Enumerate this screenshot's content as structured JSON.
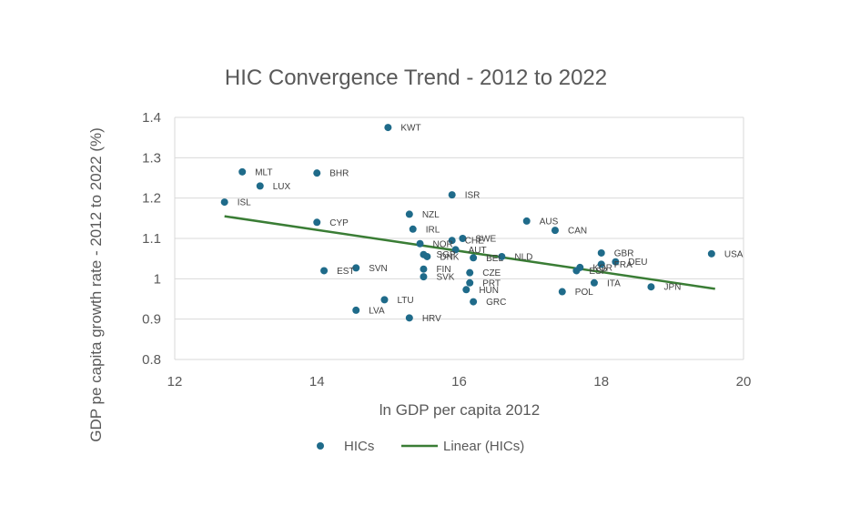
{
  "chart_data": {
    "type": "scatter",
    "title": "HIC Convergence Trend - 2012 to 2022",
    "xlabel": "ln GDP per capita 2012",
    "ylabel": "GDP pe capita growth rate - 2012 to 2022 (%)",
    "xlim": [
      12,
      20
    ],
    "ylim": [
      0.8,
      1.4
    ],
    "xticks": [
      "12",
      "14",
      "16",
      "18",
      "20"
    ],
    "yticks": [
      "0.8",
      "0.9",
      "1",
      "1.1",
      "1.2",
      "1.3",
      "1.4"
    ],
    "grid": "horizontal",
    "legend": [
      {
        "name": "HICs",
        "kind": "marker"
      },
      {
        "name": "Linear (HICs)",
        "kind": "line"
      }
    ],
    "marker_color": "#1f6b8a",
    "trend_color": "#3a7d35",
    "trendline": {
      "x": [
        12.7,
        19.6
      ],
      "y": [
        1.155,
        0.975
      ]
    },
    "points": [
      {
        "label": "KWT",
        "x": 15.0,
        "y": 1.375
      },
      {
        "label": "MLT",
        "x": 12.95,
        "y": 1.265
      },
      {
        "label": "BHR",
        "x": 14.0,
        "y": 1.262
      },
      {
        "label": "LUX",
        "x": 13.2,
        "y": 1.23
      },
      {
        "label": "ISR",
        "x": 15.9,
        "y": 1.208
      },
      {
        "label": "ISL",
        "x": 12.7,
        "y": 1.19
      },
      {
        "label": "NZL",
        "x": 15.3,
        "y": 1.16
      },
      {
        "label": "AUS",
        "x": 16.95,
        "y": 1.143
      },
      {
        "label": "CYP",
        "x": 14.0,
        "y": 1.14
      },
      {
        "label": "IRL",
        "x": 15.35,
        "y": 1.123
      },
      {
        "label": "CAN",
        "x": 17.35,
        "y": 1.12
      },
      {
        "label": "SWE",
        "x": 16.05,
        "y": 1.1
      },
      {
        "label": "CHE",
        "x": 15.9,
        "y": 1.095
      },
      {
        "label": "NOR",
        "x": 15.45,
        "y": 1.087
      },
      {
        "label": "AUT",
        "x": 15.95,
        "y": 1.072
      },
      {
        "label": "USA",
        "x": 19.55,
        "y": 1.062
      },
      {
        "label": "GBR",
        "x": 18.0,
        "y": 1.064
      },
      {
        "label": "SGP",
        "x": 15.5,
        "y": 1.06
      },
      {
        "label": "DNK",
        "x": 15.55,
        "y": 1.055
      },
      {
        "label": "NLD",
        "x": 16.6,
        "y": 1.055
      },
      {
        "label": "BEL",
        "x": 16.2,
        "y": 1.052
      },
      {
        "label": "DEU",
        "x": 18.2,
        "y": 1.042
      },
      {
        "label": "FRA",
        "x": 18.0,
        "y": 1.036
      },
      {
        "label": "KOR",
        "x": 17.7,
        "y": 1.028
      },
      {
        "label": "ESP",
        "x": 17.65,
        "y": 1.02
      },
      {
        "label": "SVN",
        "x": 14.55,
        "y": 1.027
      },
      {
        "label": "FIN",
        "x": 15.5,
        "y": 1.024
      },
      {
        "label": "EST",
        "x": 14.1,
        "y": 1.02
      },
      {
        "label": "CZE",
        "x": 16.15,
        "y": 1.015
      },
      {
        "label": "SVK",
        "x": 15.5,
        "y": 1.005
      },
      {
        "label": "PRT",
        "x": 16.15,
        "y": 0.99
      },
      {
        "label": "ITA",
        "x": 17.9,
        "y": 0.99
      },
      {
        "label": "JPN",
        "x": 18.7,
        "y": 0.98
      },
      {
        "label": "HUN",
        "x": 16.1,
        "y": 0.973
      },
      {
        "label": "POL",
        "x": 17.45,
        "y": 0.968
      },
      {
        "label": "LTU",
        "x": 14.95,
        "y": 0.948
      },
      {
        "label": "GRC",
        "x": 16.2,
        "y": 0.943
      },
      {
        "label": "LVA",
        "x": 14.55,
        "y": 0.922
      },
      {
        "label": "HRV",
        "x": 15.3,
        "y": 0.903
      }
    ]
  }
}
